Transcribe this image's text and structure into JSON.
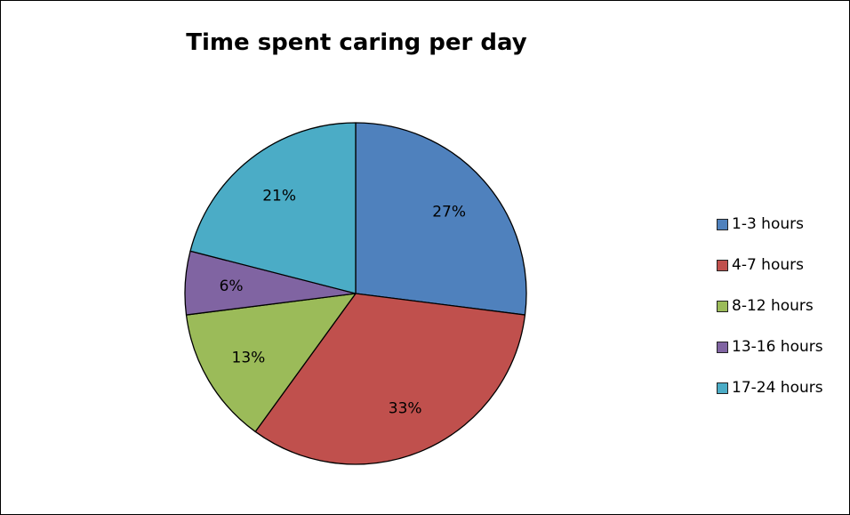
{
  "chart_data": {
    "type": "pie",
    "title": "Time spent caring per day",
    "categories": [
      "1-3 hours",
      "4-7 hours",
      "8-12 hours",
      "13-16 hours",
      "17-24 hours"
    ],
    "values": [
      27,
      33,
      13,
      6,
      21
    ],
    "labels": [
      "27%",
      "33%",
      "13%",
      "6%",
      "21%"
    ],
    "colors": [
      "#4f81bd",
      "#c0504d",
      "#9bbb59",
      "#8064a2",
      "#4bacc6"
    ],
    "legend": "right"
  }
}
